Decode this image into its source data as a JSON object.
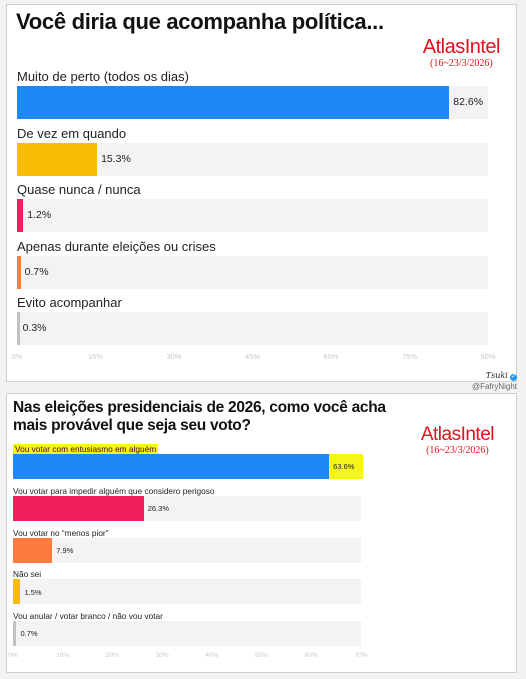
{
  "chart_data": [
    {
      "type": "bar",
      "orientation": "horizontal",
      "title": "Você diria que acompanha política...",
      "brand": "AtlasIntel",
      "date": "(16~23/3/2026)",
      "categories": [
        "Muito de perto (todos os dias)",
        "De vez em quando",
        "Quase nunca / nunca",
        "Apenas durante eleições ou crises",
        "Evito acompanhar"
      ],
      "values": [
        82.6,
        15.3,
        1.2,
        0.7,
        0.3
      ],
      "value_labels": [
        "82.6%",
        "15.3%",
        "1.2%",
        "0.7%",
        "0.3%"
      ],
      "colors": [
        "#1e88f5",
        "#fbbc05",
        "#ef1f5e",
        "#ff7a3d",
        "#c6c0bc"
      ],
      "xlim": [
        0,
        90
      ],
      "ticks": [
        "0%",
        "15%",
        "30%",
        "45%",
        "60%",
        "75%",
        "90%"
      ],
      "tick_values": [
        0,
        15,
        30,
        45,
        60,
        75,
        90
      ],
      "grid": false
    },
    {
      "type": "bar",
      "orientation": "horizontal",
      "title": "Nas eleições presidenciais de 2026, como você acha mais provável que seja seu voto?",
      "brand": "AtlasIntel",
      "date": "(16~23/3/2026)",
      "categories": [
        "Vou votar com entusiasmo em alguém",
        "Vou votar para impedir alguém que considero perigoso",
        "Vou votar no “menos pior”",
        "Não sei",
        "Vou anular / votar branco / não vou votar"
      ],
      "values": [
        63.6,
        26.3,
        7.9,
        1.5,
        0.7
      ],
      "value_labels": [
        "63.6%",
        "26.3%",
        "7.9%",
        "1.5%",
        "0.7%"
      ],
      "colors": [
        "#1e88f5",
        "#ef1f5e",
        "#ff7a3d",
        "#fbbc05",
        "#c6c0bc"
      ],
      "highlight": {
        "index": 0,
        "color": "#f5f51a"
      },
      "xlim": [
        0,
        70
      ],
      "ticks": [
        "0%",
        "10%",
        "20%",
        "30%",
        "40%",
        "50%",
        "60%",
        "70%"
      ],
      "tick_values": [
        0,
        10,
        20,
        30,
        40,
        50,
        60,
        70
      ],
      "grid": false
    }
  ],
  "credit": {
    "signature": "Ƭѕuki",
    "handle": "@FafryNight"
  }
}
